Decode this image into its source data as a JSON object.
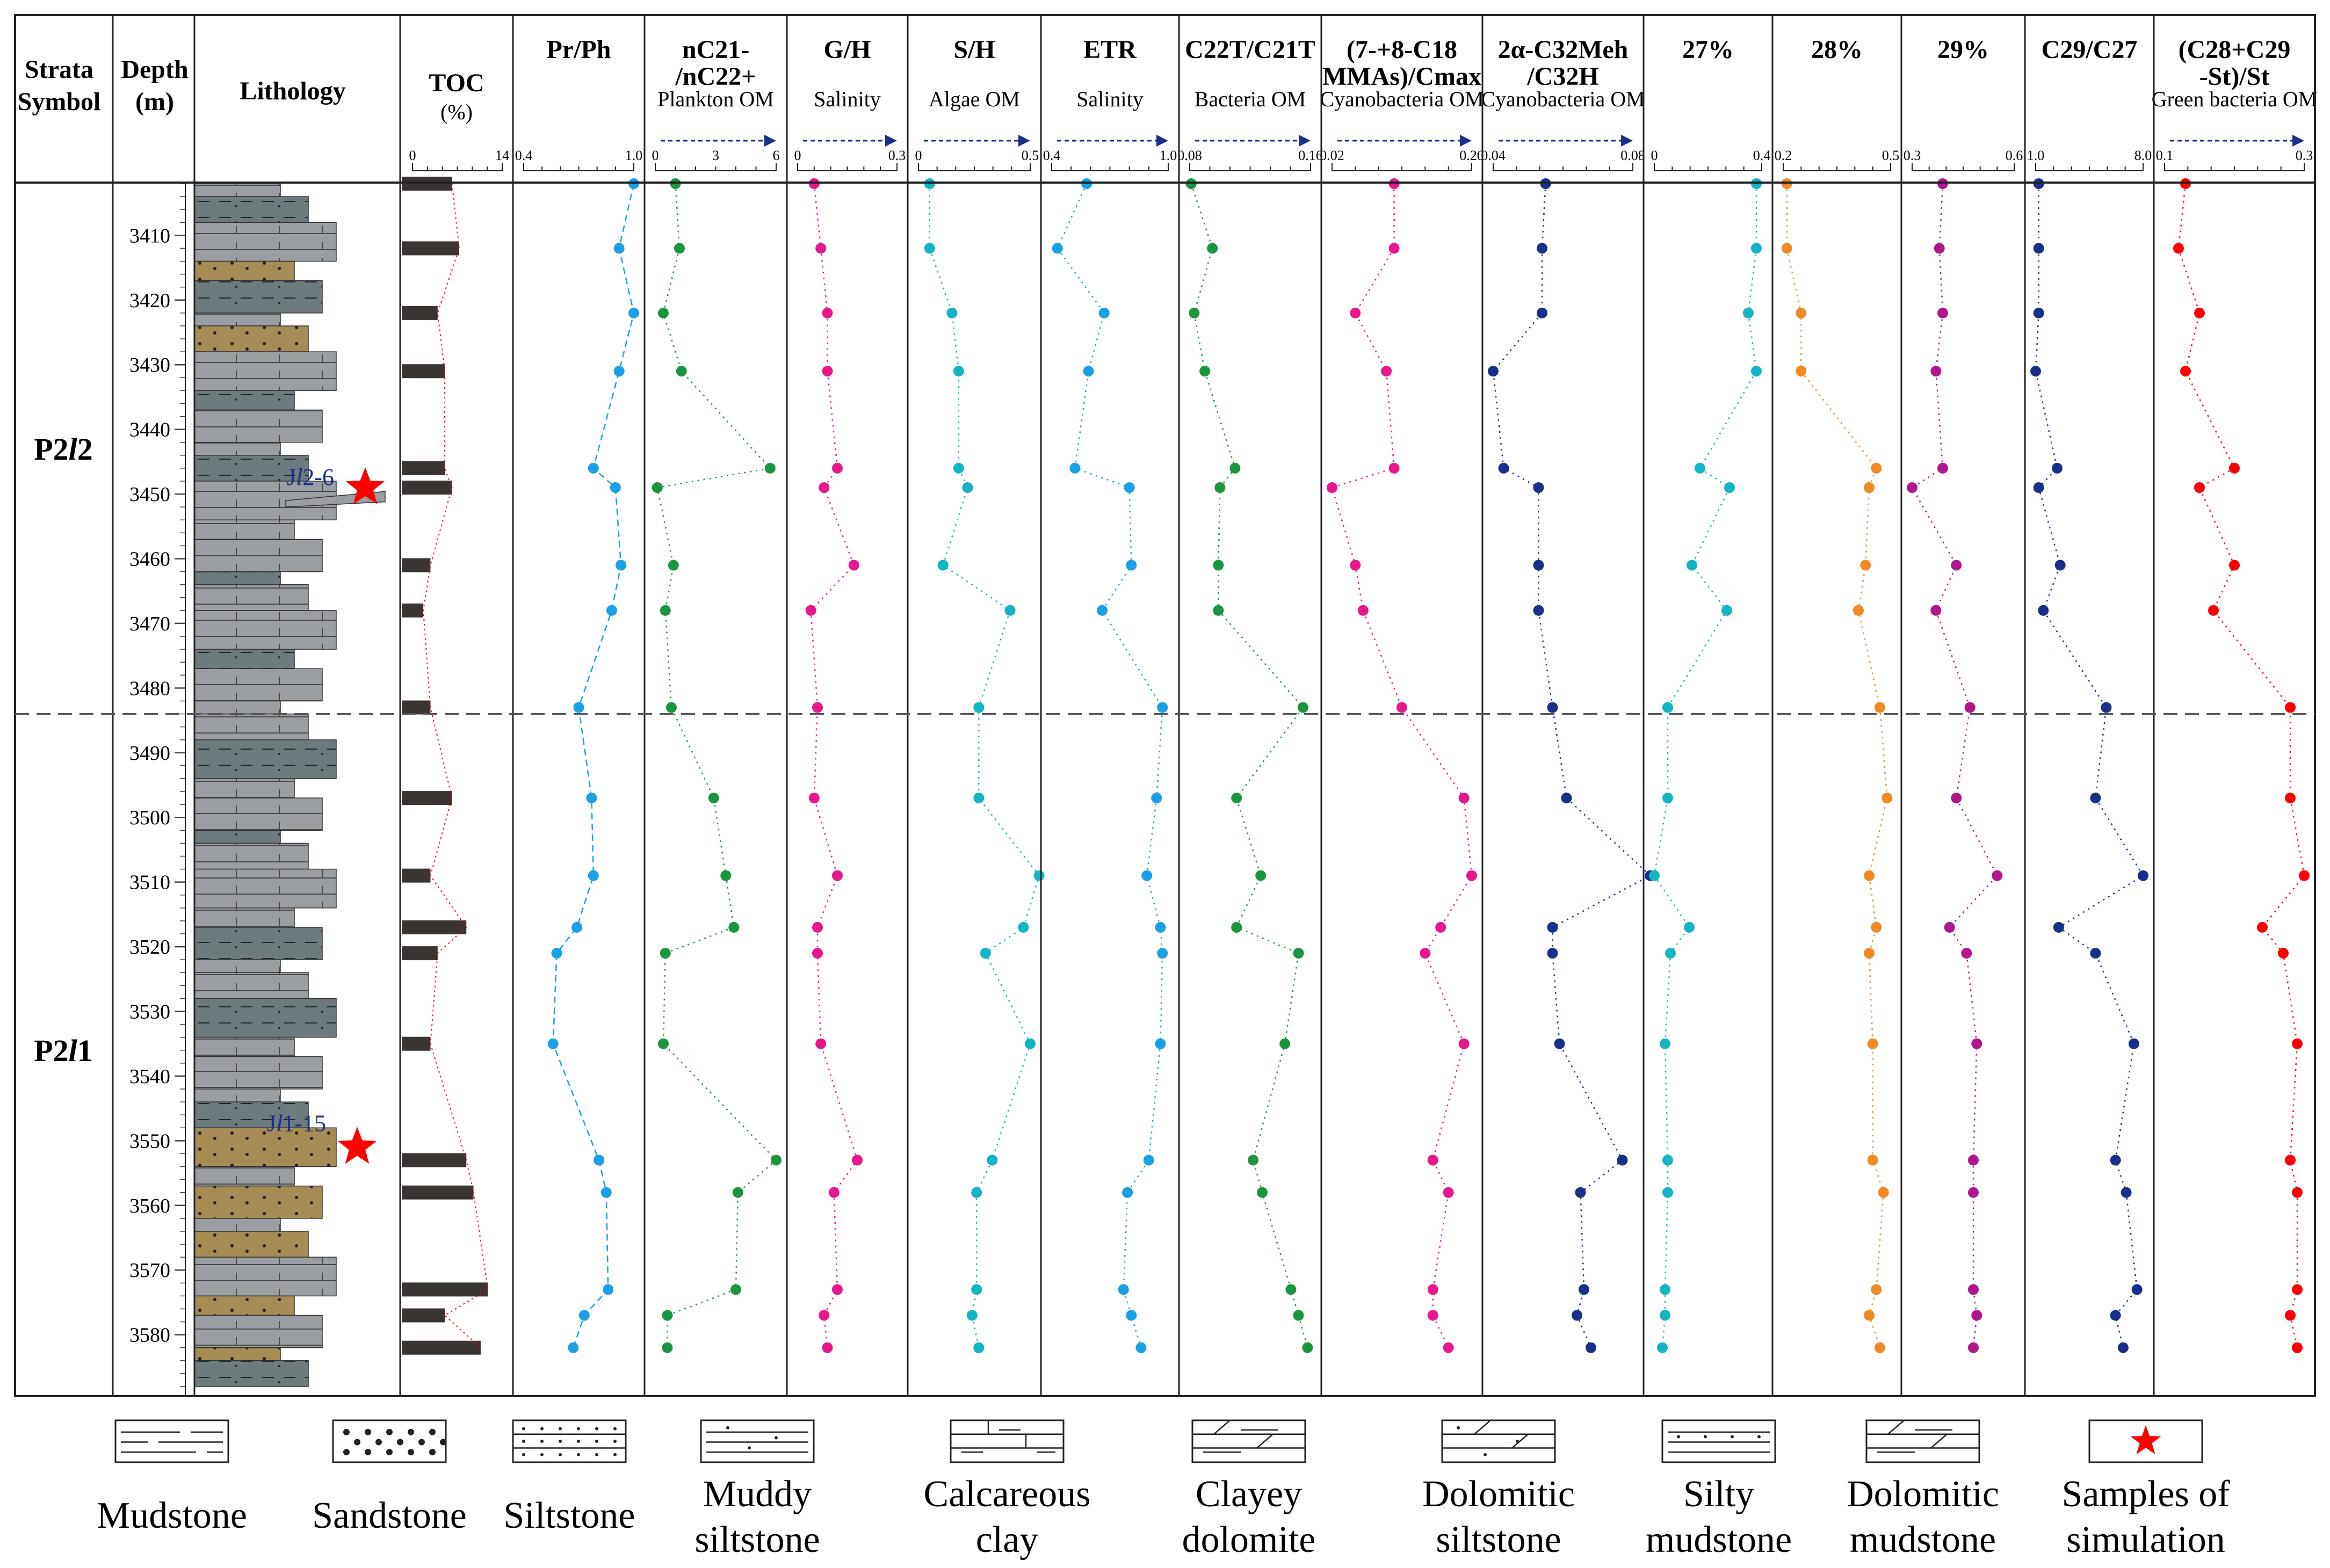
{
  "figure": {
    "strata_header_1": "Strata",
    "strata_header_2": "Symbol",
    "depth_header_1": "Depth",
    "depth_header_2": "(m)",
    "lithology_header": "Lithology",
    "units": [
      {
        "label": "P2l2",
        "main": "P2",
        "ital": "l",
        "num": "2",
        "top_m": 3402,
        "bottom_m": 3484
      },
      {
        "label": "P2l1",
        "main": "P2",
        "ital": "l",
        "num": "1",
        "top_m": 3484,
        "bottom_m": 3588
      }
    ],
    "depth_ticks": [
      3410,
      3420,
      3430,
      3440,
      3450,
      3460,
      3470,
      3480,
      3490,
      3500,
      3510,
      3520,
      3530,
      3540,
      3550,
      3560,
      3570,
      3580
    ],
    "depth_range": [
      3402,
      3588
    ],
    "boundary_depth": 3484,
    "samples": [
      {
        "label": "Jl2-6",
        "prefix": "J",
        "ital": "l",
        "suffix": "2-6",
        "depth": 3449
      },
      {
        "label": "Jl1-15",
        "prefix": "J",
        "ital": "l",
        "suffix": "1-15",
        "depth": 3551
      }
    ],
    "legend": [
      {
        "id": "mudstone",
        "line1": "Mudstone",
        "line2": ""
      },
      {
        "id": "sandstone",
        "line1": "Sandstone",
        "line2": ""
      },
      {
        "id": "siltstone",
        "line1": "Siltstone",
        "line2": ""
      },
      {
        "id": "muddy-siltstone",
        "line1": "Muddy",
        "line2": "siltstone"
      },
      {
        "id": "calcareous-clay",
        "line1": "Calcareous",
        "line2": "clay"
      },
      {
        "id": "clayey-dolomite",
        "line1": "Clayey",
        "line2": "dolomite"
      },
      {
        "id": "dolomitic-siltstone",
        "line1": "Dolomitic",
        "line2": "siltstone"
      },
      {
        "id": "silty-mudstone",
        "line1": "Silty",
        "line2": "mudstone"
      },
      {
        "id": "dolomitic-mudstone",
        "line1": "Dolomitic",
        "line2": "mudstone"
      },
      {
        "id": "samples-of-simulation",
        "line1": "Samples of",
        "line2": "simulation"
      }
    ],
    "colors": {
      "grey": "#9a9da1",
      "dark_grey": "#6d7a7e",
      "sand": "#a58c54",
      "star": "#ff0000",
      "arrow": "#1a2f8a",
      "label_blue": "#1a2f8a"
    }
  },
  "chart_data": {
    "type": "scatter",
    "yaxis": "Depth (m)",
    "depths": [
      3402,
      3412,
      3422,
      3431,
      3446,
      3449,
      3461,
      3468,
      3483,
      3497,
      3509,
      3517,
      3521,
      3535,
      3553,
      3558,
      3573,
      3577,
      3582
    ],
    "toc": {
      "title": "TOC",
      "unit": "(%)",
      "range": [
        0,
        14
      ],
      "ticks": [
        "0",
        "14"
      ],
      "depths": [
        3402,
        3412,
        3422,
        3431,
        3446,
        3449,
        3461,
        3468,
        3483,
        3497,
        3509,
        3517,
        3521,
        3535,
        3553,
        3558,
        3573,
        3577,
        3582
      ],
      "values": [
        7,
        8,
        5,
        6,
        6,
        7,
        4,
        3,
        4,
        7,
        4,
        9,
        5,
        4,
        9,
        10,
        12,
        6,
        11
      ],
      "color": "#ff0000"
    },
    "series": [
      {
        "name": "Pr/Ph",
        "line1": "Pr/Ph",
        "line2": "",
        "line3": "",
        "range": [
          0.4,
          1.0
        ],
        "ticks": [
          "0.4",
          "1.0"
        ],
        "color": "#1aa0e6",
        "dash": "12,8",
        "values": [
          1.0,
          0.92,
          1.0,
          0.92,
          0.78,
          0.9,
          0.93,
          0.88,
          0.7,
          0.77,
          0.78,
          0.69,
          0.58,
          0.56,
          0.81,
          0.85,
          0.86,
          0.73,
          0.67
        ]
      },
      {
        "name": "nC21-/nC22+",
        "line1": "nC21-",
        "line2": "/nC22+",
        "line3": "Plankton OM",
        "range": [
          0,
          6
        ],
        "ticks": [
          "0",
          "3",
          "6"
        ],
        "color": "#1a9641",
        "dash": "3,8",
        "values": [
          1.0,
          1.2,
          0.4,
          1.3,
          5.7,
          0.1,
          0.9,
          0.5,
          0.8,
          2.9,
          3.5,
          3.9,
          0.5,
          0.4,
          6.0,
          4.1,
          4.0,
          0.6,
          0.6
        ]
      },
      {
        "name": "G/H",
        "line1": "G/H",
        "line2": "Salinity",
        "line3": "",
        "range": [
          0,
          0.3
        ],
        "ticks": [
          "0",
          "0.3"
        ],
        "color": "#e8188c",
        "dash": "3,8",
        "values": [
          0.05,
          0.07,
          0.09,
          0.09,
          0.12,
          0.08,
          0.17,
          0.04,
          0.06,
          0.05,
          0.12,
          0.06,
          0.06,
          0.07,
          0.18,
          0.11,
          0.12,
          0.08,
          0.09
        ]
      },
      {
        "name": "S/H",
        "line1": "S/H",
        "line2": "Algae OM",
        "line3": "",
        "range": [
          0,
          0.5
        ],
        "ticks": [
          "0",
          "0.5"
        ],
        "color": "#13b4c4",
        "dash": "3,8",
        "values": [
          0.05,
          0.05,
          0.15,
          0.18,
          0.18,
          0.22,
          0.11,
          0.41,
          0.27,
          0.27,
          0.54,
          0.47,
          0.3,
          0.5,
          0.33,
          0.26,
          0.26,
          0.24,
          0.27
        ]
      },
      {
        "name": "ETR",
        "line1": "ETR",
        "line2": "Salinity",
        "line3": "",
        "range": [
          0.4,
          1.0
        ],
        "ticks": [
          "0.4",
          "1.0"
        ],
        "color": "#1aa0e6",
        "dash": "3,8",
        "values": [
          0.58,
          0.43,
          0.67,
          0.59,
          0.52,
          0.8,
          0.81,
          0.66,
          0.97,
          0.94,
          0.89,
          0.96,
          0.97,
          0.96,
          0.9,
          0.79,
          0.77,
          0.81,
          0.86
        ]
      },
      {
        "name": "C22T/C21T",
        "line1": "C22T/C21T",
        "line2": "Bacteria OM",
        "line3": "",
        "range": [
          0.08,
          0.16
        ],
        "ticks": [
          "0.08",
          "0.16"
        ],
        "color": "#1a9641",
        "dash": "3,8",
        "values": [
          0.081,
          0.095,
          0.083,
          0.09,
          0.11,
          0.1,
          0.099,
          0.099,
          0.155,
          0.111,
          0.127,
          0.111,
          0.152,
          0.143,
          0.122,
          0.128,
          0.147,
          0.152,
          0.158
        ]
      },
      {
        "name": "(7-+8-C18 MMAs)/Cmax",
        "line1": "(7-+8-C18",
        "line2": "MMAs)/Cmax",
        "line3": "Cyanobacteria OM",
        "range": [
          0.02,
          0.2
        ],
        "ticks": [
          "0.02",
          "0.20"
        ],
        "color": "#e8188c",
        "dash": "3,8",
        "values": [
          0.1,
          0.1,
          0.05,
          0.09,
          0.1,
          0.02,
          0.05,
          0.06,
          0.11,
          0.19,
          0.2,
          0.16,
          0.14,
          0.19,
          0.15,
          0.17,
          0.15,
          0.15,
          0.17
        ]
      },
      {
        "name": "2α-C32Meh/C32H",
        "line1": "2α-C32Meh",
        "line2": "/C32H",
        "line3": "Cyanobacteria OM",
        "range": [
          0.04,
          0.08
        ],
        "ticks": [
          "0.04",
          "0.08"
        ],
        "color": "#1a2f8a",
        "dash": "3,8",
        "values": [
          0.055,
          0.054,
          0.054,
          0.04,
          0.043,
          0.053,
          0.053,
          0.053,
          0.057,
          0.061,
          0.085,
          0.057,
          0.057,
          0.059,
          0.077,
          0.065,
          0.066,
          0.064,
          0.068
        ]
      },
      {
        "name": "27%",
        "line1": "27%",
        "line2": "",
        "line3": "",
        "range": [
          0,
          0.4
        ],
        "ticks": [
          "0",
          "0.4"
        ],
        "color": "#13b4c4",
        "dash": "3,8",
        "values": [
          0.38,
          0.38,
          0.35,
          0.38,
          0.17,
          0.28,
          0.14,
          0.27,
          0.05,
          0.05,
          0.0,
          0.13,
          0.06,
          0.04,
          0.05,
          0.05,
          0.04,
          0.04,
          0.03
        ]
      },
      {
        "name": "28%",
        "line1": "28%",
        "line2": "",
        "line3": "",
        "range": [
          0.2,
          0.5
        ],
        "ticks": [
          "0.2",
          "0.5"
        ],
        "color": "#f08a24",
        "dash": "3,8",
        "values": [
          0.21,
          0.21,
          0.25,
          0.25,
          0.46,
          0.44,
          0.43,
          0.41,
          0.47,
          0.49,
          0.44,
          0.46,
          0.44,
          0.45,
          0.45,
          0.48,
          0.46,
          0.44,
          0.47
        ]
      },
      {
        "name": "29%",
        "line1": "29%",
        "line2": "",
        "line3": "",
        "range": [
          0.3,
          0.6
        ],
        "ticks": [
          "0.3",
          "0.6"
        ],
        "color": "#b0178c",
        "dash": "3,8",
        "values": [
          0.39,
          0.38,
          0.39,
          0.37,
          0.39,
          0.3,
          0.43,
          0.37,
          0.47,
          0.43,
          0.55,
          0.41,
          0.46,
          0.49,
          0.48,
          0.48,
          0.48,
          0.49,
          0.48
        ]
      },
      {
        "name": "C29/C27",
        "line1": "C29/C27",
        "line2": "",
        "line3": "",
        "range": [
          1.0,
          8.0
        ],
        "ticks": [
          "1.0",
          "8.0"
        ],
        "color": "#1a2f8a",
        "dash": "3,8",
        "values": [
          1.2,
          1.2,
          1.2,
          1.0,
          2.4,
          1.2,
          2.6,
          1.5,
          5.6,
          4.9,
          8.0,
          2.5,
          4.9,
          7.4,
          6.2,
          6.9,
          7.6,
          6.2,
          6.7
        ]
      },
      {
        "name": "(C28+C29-St)/St",
        "line1": "(C28+C29",
        "line2": "-St)/St",
        "line3": "Green bacteria OM",
        "range": [
          0.1,
          0.3
        ],
        "ticks": [
          "0.1",
          "0.3"
        ],
        "color": "#ff0000",
        "dash": "3,8",
        "values": [
          0.13,
          0.12,
          0.15,
          0.13,
          0.2,
          0.15,
          0.2,
          0.17,
          0.28,
          0.28,
          0.3,
          0.24,
          0.27,
          0.29,
          0.28,
          0.29,
          0.29,
          0.28,
          0.29
        ]
      }
    ]
  }
}
